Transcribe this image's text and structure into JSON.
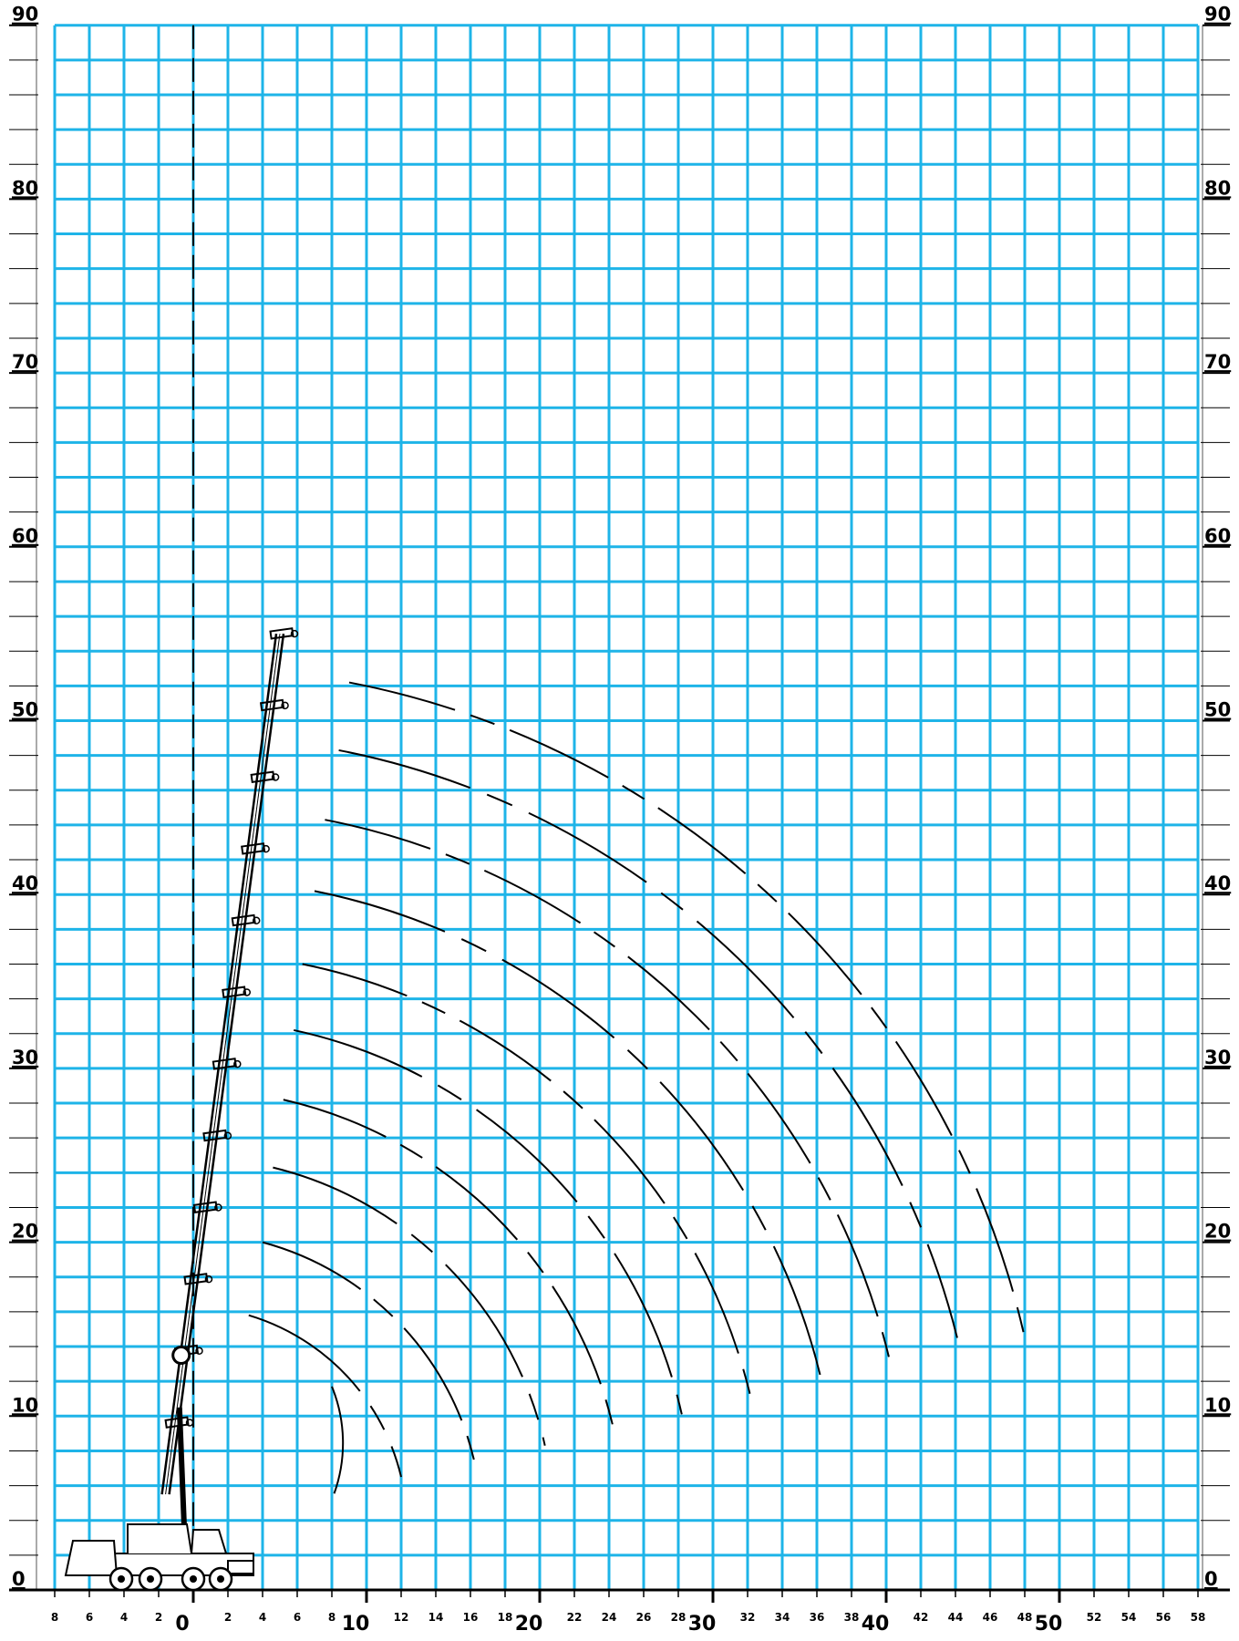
{
  "chart_data": {
    "type": "range_chart",
    "grid_color": "#1eb4e8",
    "x_axis": {
      "range": [
        -8,
        58
      ],
      "major_labels": [
        "0",
        "10",
        "20",
        "30",
        "40",
        "50"
      ],
      "minor_labels": [
        "8",
        "6",
        "4",
        "2",
        "2",
        "4",
        "6",
        "8",
        "12",
        "14",
        "16",
        "18",
        "22",
        "24",
        "26",
        "28",
        "32",
        "34",
        "36",
        "38",
        "42",
        "44",
        "46",
        "48",
        "52",
        "54",
        "56",
        "58"
      ]
    },
    "y_axis": {
      "range": [
        0,
        90
      ],
      "labels_left": [
        "0",
        "10",
        "20",
        "30",
        "40",
        "50",
        "60",
        "70",
        "80",
        "90"
      ],
      "labels_right": [
        "0",
        "10",
        "20",
        "30",
        "40",
        "50",
        "60",
        "70",
        "80",
        "90"
      ]
    },
    "boom_tip": {
      "x": 5,
      "y": 55
    },
    "arcs": [
      {
        "start": [
          8,
          11.7
        ],
        "end": [
          8,
          5.2
        ]
      },
      {
        "start": [
          3.2,
          15.8
        ],
        "end": [
          12,
          6.5
        ]
      },
      {
        "start": [
          4,
          20
        ],
        "end": [
          16.2,
          7.5
        ]
      },
      {
        "start": [
          4.6,
          24.3
        ],
        "end": [
          20.3,
          8.3
        ]
      },
      {
        "start": [
          5.2,
          28.2
        ],
        "end": [
          24.3,
          9.1
        ]
      },
      {
        "start": [
          5.8,
          32.2
        ],
        "end": [
          28.2,
          10.1
        ]
      },
      {
        "start": [
          6.3,
          36
        ],
        "end": [
          32.2,
          11
        ]
      },
      {
        "start": [
          7,
          40.2
        ],
        "end": [
          36.3,
          11.9
        ]
      },
      {
        "start": [
          7.6,
          44.3
        ],
        "end": [
          40.3,
          12.8
        ]
      },
      {
        "start": [
          8.4,
          48.3
        ],
        "end": [
          44.1,
          14.5
        ]
      },
      {
        "start": [
          9,
          52.2
        ],
        "end": [
          48,
          14.5
        ]
      }
    ]
  }
}
